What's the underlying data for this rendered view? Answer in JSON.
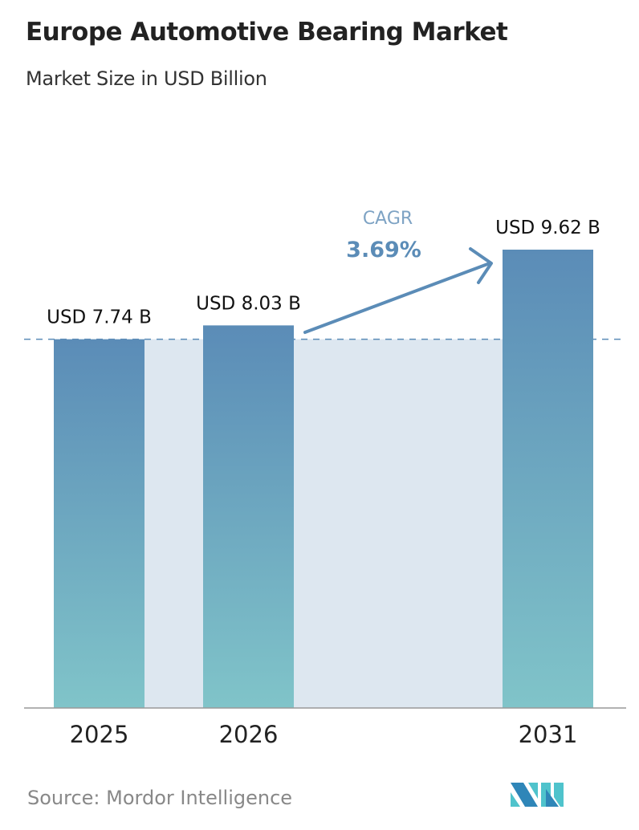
{
  "title": "Europe Automotive Bearing Market",
  "subtitle": "Market Size in USD Billion",
  "source": "Source:  Mordor Intelligence",
  "logo_text": "Mordor Intelligence",
  "colors": {
    "bar_top": "#5b8cb7",
    "bar_bottom": "#80c4c9",
    "band": "#dde7f0",
    "accent": "#5b8cb7"
  },
  "chart_data": {
    "type": "bar",
    "title": "Europe Automotive Bearing Market",
    "subtitle": "Market Size in USD Billion",
    "categories": [
      "2025",
      "2026",
      "2031"
    ],
    "values": [
      7.74,
      8.03,
      9.62
    ],
    "data_labels": [
      "USD 7.74 B",
      "USD 8.03 B",
      "USD 9.62 B"
    ],
    "ylim": [
      0,
      9.62
    ],
    "grid": false,
    "reference_line": 7.74,
    "annotation": {
      "label": "CAGR",
      "value": "3.69%"
    }
  }
}
